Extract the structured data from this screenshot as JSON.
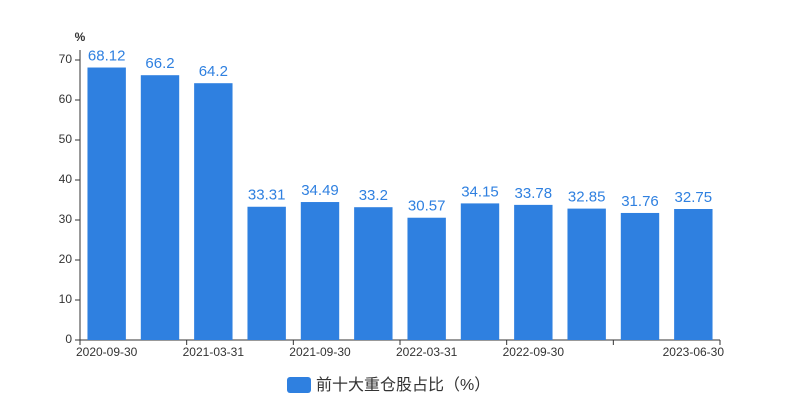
{
  "chart_data": {
    "type": "bar",
    "y_unit": "%",
    "categories": [
      "2020-09-30",
      null,
      "2021-03-31",
      null,
      "2021-09-30",
      null,
      "2022-03-31",
      null,
      "2022-09-30",
      null,
      null,
      "2023-06-30"
    ],
    "series": [
      {
        "name": "前十大重仓股占比（%）",
        "color": "#2f80e0",
        "values": [
          68.12,
          66.2,
          64.2,
          33.31,
          34.49,
          33.2,
          30.57,
          34.15,
          33.78,
          32.85,
          31.76,
          32.75
        ]
      }
    ],
    "ylim": [
      0,
      70
    ],
    "yticks": [
      0,
      10,
      20,
      30,
      40,
      50,
      60,
      70
    ],
    "grid": false
  }
}
